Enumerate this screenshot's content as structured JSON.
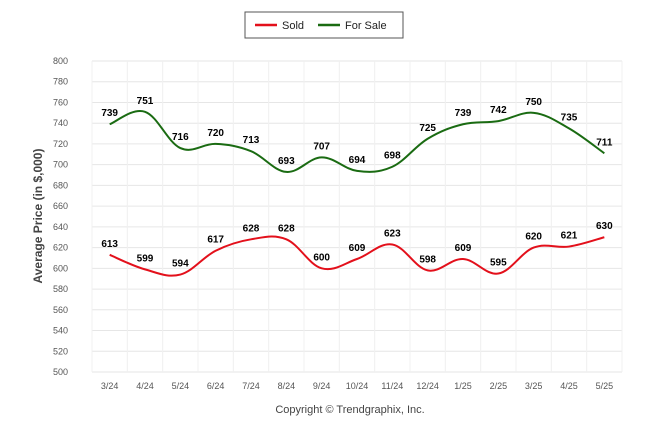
{
  "chart_data": {
    "type": "line",
    "categories": [
      "3/24",
      "4/24",
      "5/24",
      "6/24",
      "7/24",
      "8/24",
      "9/24",
      "10/24",
      "11/24",
      "12/24",
      "1/25",
      "2/25",
      "3/25",
      "4/25",
      "5/25"
    ],
    "series": [
      {
        "name": "Sold",
        "color": "#e3101b",
        "values": [
          613,
          599,
          594,
          617,
          628,
          628,
          600,
          609,
          623,
          598,
          609,
          595,
          620,
          621,
          630
        ]
      },
      {
        "name": "For Sale",
        "color": "#1a6b12",
        "values": [
          739,
          751,
          716,
          720,
          713,
          693,
          707,
          694,
          698,
          725,
          739,
          742,
          750,
          735,
          711
        ]
      }
    ],
    "ylabel": "Average Price (in $,000)",
    "ylim": [
      500,
      800
    ],
    "yticks": [
      500,
      520,
      540,
      560,
      580,
      600,
      620,
      640,
      660,
      680,
      700,
      720,
      740,
      760,
      780,
      800
    ],
    "grid": true,
    "legend_position": "top-center",
    "data_labels": true
  },
  "footer": {
    "copyright": "Copyright © Trendgraphix, Inc."
  }
}
